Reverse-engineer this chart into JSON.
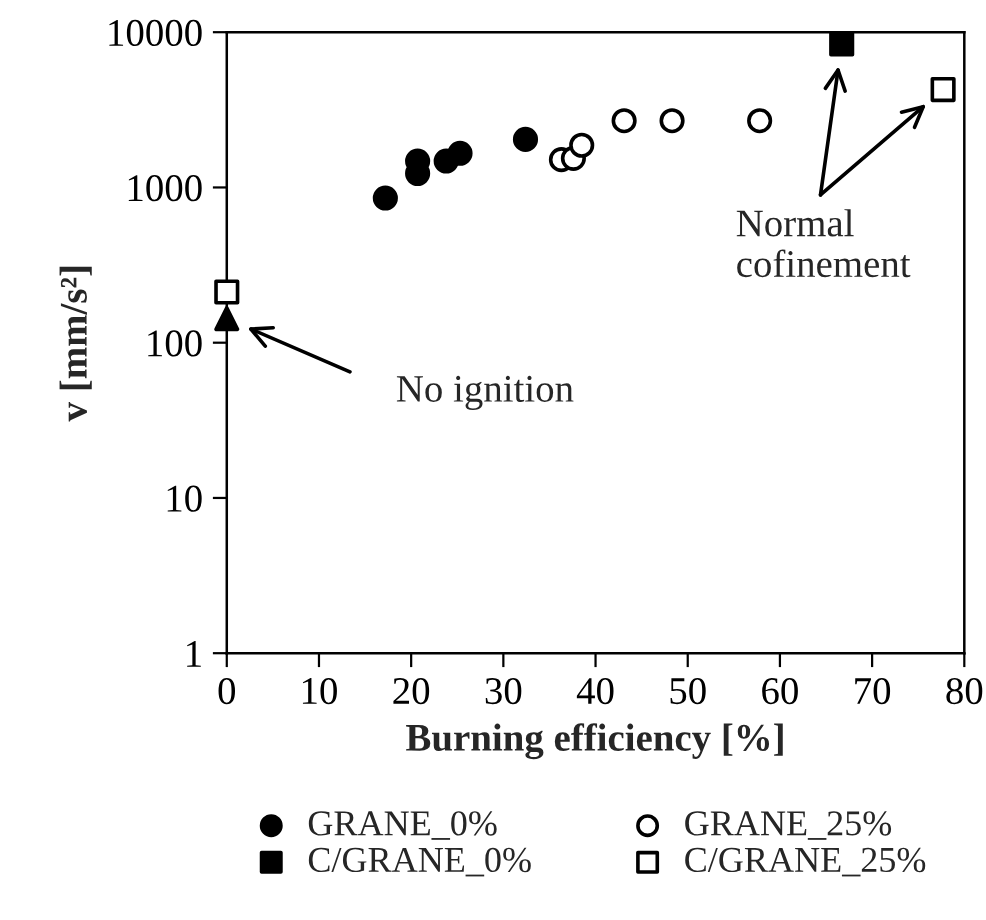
{
  "chart_data": {
    "type": "scatter",
    "xlabel": "Burning efficiency [%]",
    "ylabel": "v [mm/s²]",
    "series": [
      {
        "name": "GRANE_0%",
        "color": "#000000",
        "marker": "circle",
        "x": [
          17.2,
          20.7,
          20.7,
          23.8,
          25.3,
          32.4
        ],
        "values": [
          855,
          1480,
          1230,
          1480,
          1660,
          2040
        ]
      },
      {
        "name": "GRANE_25%",
        "color": "#ffffff",
        "marker": "circle",
        "x": [
          36.3,
          37.6,
          38.5,
          43.1,
          48.3,
          57.8
        ],
        "values": [
          1510,
          1540,
          1870,
          2690,
          2690,
          2690
        ]
      },
      {
        "name": "C/GRANE_0%",
        "color": "#000000",
        "marker": "square",
        "x": [
          66.7
        ],
        "values": [
          8400
        ]
      },
      {
        "name": "C/GRANE_25%",
        "color": "#ffffff",
        "marker": "square",
        "x": [
          0,
          77.7
        ],
        "values": [
          212,
          4270
        ]
      },
      {
        "color": "#000000",
        "marker": "triangle",
        "x": [
          0
        ],
        "values": [
          143
        ]
      }
    ],
    "annotations": [
      "No ignition",
      "Normal\ncofinement"
    ],
    "xlim": [
      0,
      80
    ],
    "xticks": [
      0,
      10,
      20,
      30,
      40,
      50,
      60,
      70,
      80
    ],
    "ylim": [
      1,
      10000
    ],
    "yticks": [
      1,
      10,
      100,
      1000,
      10000
    ],
    "log": true,
    "grid": false,
    "legend": "bottom"
  }
}
